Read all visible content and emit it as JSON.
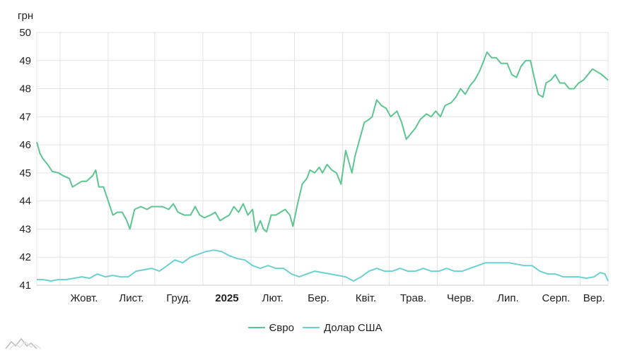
{
  "chart_data": {
    "type": "line",
    "y_unit": "грн",
    "ylim": [
      41,
      50
    ],
    "y_ticks": [
      41,
      42,
      43,
      44,
      45,
      46,
      47,
      48,
      49,
      50
    ],
    "x_ticks": [
      {
        "label": "Жовт.",
        "bold": false
      },
      {
        "label": "Лист.",
        "bold": false
      },
      {
        "label": "Груд.",
        "bold": false
      },
      {
        "label": "2025",
        "bold": true
      },
      {
        "label": "Лют.",
        "bold": false
      },
      {
        "label": "Бер.",
        "bold": false
      },
      {
        "label": "Квіт.",
        "bold": false
      },
      {
        "label": "Трав.",
        "bold": false
      },
      {
        "label": "Черв.",
        "bold": false
      },
      {
        "label": "Лип.",
        "bold": false
      },
      {
        "label": "Серп.",
        "bold": false
      },
      {
        "label": "Вер.",
        "bold": false
      }
    ],
    "x_range": [
      "2024-09-16",
      "2025-09-19"
    ],
    "month_starts": [
      "2024-10-01",
      "2024-11-01",
      "2024-12-01",
      "2025-01-01",
      "2025-02-01",
      "2025-03-01",
      "2025-04-01",
      "2025-05-01",
      "2025-06-01",
      "2025-07-01",
      "2025-08-01",
      "2025-09-01",
      "2025-10-01"
    ],
    "grid": true,
    "legend": "bottom",
    "series": [
      {
        "name": "Євро",
        "color": "#5cc590",
        "points": [
          [
            "2024-09-16",
            46.1
          ],
          [
            "2024-09-18",
            45.7
          ],
          [
            "2024-09-20",
            45.5
          ],
          [
            "2024-09-23",
            45.3
          ],
          [
            "2024-09-26",
            45.05
          ],
          [
            "2024-09-30",
            45.0
          ],
          [
            "2024-10-03",
            44.9
          ],
          [
            "2024-10-07",
            44.8
          ],
          [
            "2024-10-09",
            44.5
          ],
          [
            "2024-10-12",
            44.6
          ],
          [
            "2024-10-15",
            44.7
          ],
          [
            "2024-10-18",
            44.7
          ],
          [
            "2024-10-22",
            44.9
          ],
          [
            "2024-10-24",
            45.1
          ],
          [
            "2024-10-26",
            44.5
          ],
          [
            "2024-10-29",
            44.5
          ],
          [
            "2024-11-01",
            44.0
          ],
          [
            "2024-11-04",
            43.5
          ],
          [
            "2024-11-07",
            43.6
          ],
          [
            "2024-11-10",
            43.6
          ],
          [
            "2024-11-13",
            43.3
          ],
          [
            "2024-11-15",
            43.0
          ],
          [
            "2024-11-18",
            43.7
          ],
          [
            "2024-11-22",
            43.8
          ],
          [
            "2024-11-26",
            43.7
          ],
          [
            "2024-11-29",
            43.8
          ],
          [
            "2024-12-03",
            43.8
          ],
          [
            "2024-12-06",
            43.8
          ],
          [
            "2024-12-10",
            43.7
          ],
          [
            "2024-12-13",
            43.9
          ],
          [
            "2024-12-16",
            43.6
          ],
          [
            "2024-12-20",
            43.5
          ],
          [
            "2024-12-24",
            43.5
          ],
          [
            "2024-12-27",
            43.8
          ],
          [
            "2024-12-30",
            43.5
          ],
          [
            "2025-01-02",
            43.4
          ],
          [
            "2025-01-06",
            43.5
          ],
          [
            "2025-01-09",
            43.6
          ],
          [
            "2025-01-12",
            43.3
          ],
          [
            "2025-01-15",
            43.4
          ],
          [
            "2025-01-18",
            43.5
          ],
          [
            "2025-01-21",
            43.8
          ],
          [
            "2025-01-24",
            43.6
          ],
          [
            "2025-01-27",
            43.9
          ],
          [
            "2025-01-30",
            43.5
          ],
          [
            "2025-02-02",
            43.7
          ],
          [
            "2025-02-04",
            42.9
          ],
          [
            "2025-02-07",
            43.3
          ],
          [
            "2025-02-09",
            43.0
          ],
          [
            "2025-02-11",
            42.9
          ],
          [
            "2025-02-14",
            43.5
          ],
          [
            "2025-02-17",
            43.5
          ],
          [
            "2025-02-20",
            43.6
          ],
          [
            "2025-02-23",
            43.7
          ],
          [
            "2025-02-26",
            43.5
          ],
          [
            "2025-02-28",
            43.1
          ],
          [
            "2025-03-03",
            43.9
          ],
          [
            "2025-03-06",
            44.6
          ],
          [
            "2025-03-09",
            44.8
          ],
          [
            "2025-03-11",
            45.1
          ],
          [
            "2025-03-14",
            45.0
          ],
          [
            "2025-03-17",
            45.2
          ],
          [
            "2025-03-19",
            45.0
          ],
          [
            "2025-03-22",
            45.3
          ],
          [
            "2025-03-25",
            45.1
          ],
          [
            "2025-03-28",
            45.0
          ],
          [
            "2025-03-31",
            44.6
          ],
          [
            "2025-04-03",
            45.8
          ],
          [
            "2025-04-07",
            45.0
          ],
          [
            "2025-04-09",
            45.6
          ],
          [
            "2025-04-12",
            46.2
          ],
          [
            "2025-04-15",
            46.8
          ],
          [
            "2025-04-18",
            46.9
          ],
          [
            "2025-04-20",
            47.0
          ],
          [
            "2025-04-23",
            47.6
          ],
          [
            "2025-04-26",
            47.4
          ],
          [
            "2025-04-29",
            47.3
          ],
          [
            "2025-05-02",
            47.0
          ],
          [
            "2025-05-06",
            47.2
          ],
          [
            "2025-05-09",
            46.8
          ],
          [
            "2025-05-12",
            46.2
          ],
          [
            "2025-05-15",
            46.4
          ],
          [
            "2025-05-18",
            46.6
          ],
          [
            "2025-05-21",
            46.9
          ],
          [
            "2025-05-25",
            47.1
          ],
          [
            "2025-05-28",
            47.0
          ],
          [
            "2025-05-31",
            47.2
          ],
          [
            "2025-06-03",
            47.0
          ],
          [
            "2025-06-06",
            47.4
          ],
          [
            "2025-06-10",
            47.5
          ],
          [
            "2025-06-13",
            47.7
          ],
          [
            "2025-06-16",
            48.0
          ],
          [
            "2025-06-19",
            47.8
          ],
          [
            "2025-06-22",
            48.1
          ],
          [
            "2025-06-25",
            48.3
          ],
          [
            "2025-06-28",
            48.6
          ],
          [
            "2025-07-01",
            49.0
          ],
          [
            "2025-07-03",
            49.3
          ],
          [
            "2025-07-06",
            49.1
          ],
          [
            "2025-07-09",
            49.1
          ],
          [
            "2025-07-12",
            48.9
          ],
          [
            "2025-07-16",
            48.9
          ],
          [
            "2025-07-19",
            48.5
          ],
          [
            "2025-07-22",
            48.4
          ],
          [
            "2025-07-25",
            48.8
          ],
          [
            "2025-07-28",
            49.0
          ],
          [
            "2025-07-31",
            49.0
          ],
          [
            "2025-08-02",
            48.5
          ],
          [
            "2025-08-05",
            47.8
          ],
          [
            "2025-08-08",
            47.7
          ],
          [
            "2025-08-10",
            48.2
          ],
          [
            "2025-08-13",
            48.3
          ],
          [
            "2025-08-16",
            48.5
          ],
          [
            "2025-08-19",
            48.2
          ],
          [
            "2025-08-22",
            48.2
          ],
          [
            "2025-08-25",
            48.0
          ],
          [
            "2025-08-28",
            48.0
          ],
          [
            "2025-08-31",
            48.2
          ],
          [
            "2025-09-03",
            48.3
          ],
          [
            "2025-09-06",
            48.5
          ],
          [
            "2025-09-09",
            48.7
          ],
          [
            "2025-09-12",
            48.6
          ],
          [
            "2025-09-15",
            48.5
          ],
          [
            "2025-09-17",
            48.4
          ],
          [
            "2025-09-19",
            48.3
          ]
        ]
      },
      {
        "name": "Долар США",
        "color": "#6cd0d0",
        "points": [
          [
            "2024-09-16",
            41.2
          ],
          [
            "2024-09-20",
            41.2
          ],
          [
            "2024-09-25",
            41.15
          ],
          [
            "2024-09-30",
            41.2
          ],
          [
            "2024-10-05",
            41.2
          ],
          [
            "2024-10-10",
            41.25
          ],
          [
            "2024-10-15",
            41.3
          ],
          [
            "2024-10-20",
            41.25
          ],
          [
            "2024-10-25",
            41.4
          ],
          [
            "2024-10-30",
            41.3
          ],
          [
            "2024-11-04",
            41.35
          ],
          [
            "2024-11-09",
            41.3
          ],
          [
            "2024-11-14",
            41.3
          ],
          [
            "2024-11-19",
            41.5
          ],
          [
            "2024-11-24",
            41.55
          ],
          [
            "2024-11-29",
            41.6
          ],
          [
            "2024-12-04",
            41.5
          ],
          [
            "2024-12-09",
            41.7
          ],
          [
            "2024-12-14",
            41.9
          ],
          [
            "2024-12-19",
            41.8
          ],
          [
            "2024-12-24",
            42.0
          ],
          [
            "2024-12-29",
            42.1
          ],
          [
            "2025-01-03",
            42.2
          ],
          [
            "2025-01-08",
            42.25
          ],
          [
            "2025-01-13",
            42.2
          ],
          [
            "2025-01-18",
            42.05
          ],
          [
            "2025-01-23",
            41.95
          ],
          [
            "2025-01-28",
            41.9
          ],
          [
            "2025-02-02",
            41.7
          ],
          [
            "2025-02-07",
            41.6
          ],
          [
            "2025-02-12",
            41.7
          ],
          [
            "2025-02-17",
            41.6
          ],
          [
            "2025-02-22",
            41.6
          ],
          [
            "2025-02-27",
            41.4
          ],
          [
            "2025-03-04",
            41.3
          ],
          [
            "2025-03-09",
            41.4
          ],
          [
            "2025-03-14",
            41.5
          ],
          [
            "2025-03-19",
            41.45
          ],
          [
            "2025-03-24",
            41.4
          ],
          [
            "2025-03-29",
            41.35
          ],
          [
            "2025-04-03",
            41.3
          ],
          [
            "2025-04-08",
            41.15
          ],
          [
            "2025-04-13",
            41.3
          ],
          [
            "2025-04-18",
            41.5
          ],
          [
            "2025-04-23",
            41.6
          ],
          [
            "2025-04-28",
            41.5
          ],
          [
            "2025-05-03",
            41.5
          ],
          [
            "2025-05-08",
            41.6
          ],
          [
            "2025-05-13",
            41.5
          ],
          [
            "2025-05-18",
            41.5
          ],
          [
            "2025-05-23",
            41.6
          ],
          [
            "2025-05-28",
            41.5
          ],
          [
            "2025-06-02",
            41.5
          ],
          [
            "2025-06-07",
            41.6
          ],
          [
            "2025-06-12",
            41.5
          ],
          [
            "2025-06-17",
            41.5
          ],
          [
            "2025-06-22",
            41.6
          ],
          [
            "2025-06-27",
            41.7
          ],
          [
            "2025-07-02",
            41.8
          ],
          [
            "2025-07-07",
            41.8
          ],
          [
            "2025-07-12",
            41.8
          ],
          [
            "2025-07-17",
            41.8
          ],
          [
            "2025-07-22",
            41.75
          ],
          [
            "2025-07-27",
            41.7
          ],
          [
            "2025-08-01",
            41.7
          ],
          [
            "2025-08-06",
            41.5
          ],
          [
            "2025-08-11",
            41.4
          ],
          [
            "2025-08-16",
            41.4
          ],
          [
            "2025-08-21",
            41.3
          ],
          [
            "2025-08-26",
            41.3
          ],
          [
            "2025-08-31",
            41.3
          ],
          [
            "2025-09-05",
            41.25
          ],
          [
            "2025-09-10",
            41.3
          ],
          [
            "2025-09-14",
            41.45
          ],
          [
            "2025-09-17",
            41.4
          ],
          [
            "2025-09-19",
            41.15
          ]
        ]
      }
    ]
  }
}
